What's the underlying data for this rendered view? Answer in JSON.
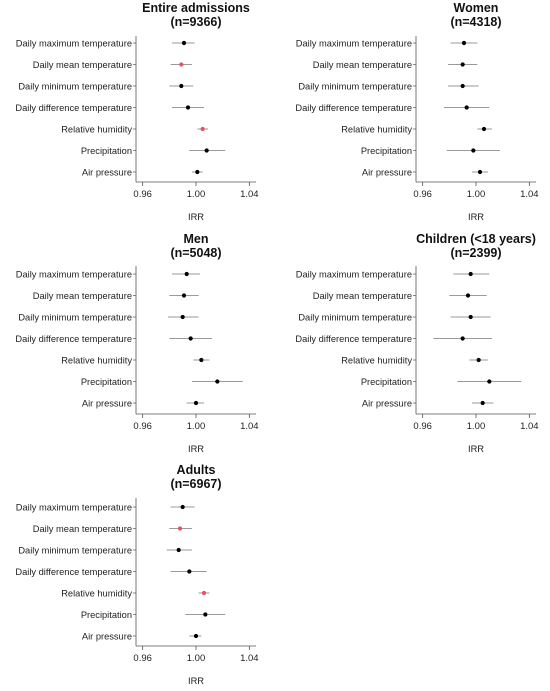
{
  "figure": {
    "colors": {
      "default_point": "#000000",
      "highlight_point": "#e8505b",
      "ci_line": "#9a9a9a",
      "axis": "#555555"
    }
  },
  "chart_data": [
    {
      "type": "forest",
      "title": "Entire admissions",
      "subtitle": "(n=9366)",
      "xlabel": "IRR",
      "xlim": [
        0.955,
        1.045
      ],
      "xticks": [
        "0.96",
        "1.00",
        "1.04"
      ],
      "xtick_values": [
        0.96,
        1.0,
        1.04
      ],
      "rows": [
        {
          "label": "Daily maximum temperature",
          "irr": 0.991,
          "lower": 0.982,
          "upper": 0.999,
          "highlight": false
        },
        {
          "label": "Daily mean temperature",
          "irr": 0.989,
          "lower": 0.981,
          "upper": 0.997,
          "highlight": true
        },
        {
          "label": "Daily minimum temperature",
          "irr": 0.989,
          "lower": 0.98,
          "upper": 0.998,
          "highlight": false
        },
        {
          "label": "Daily difference temperature",
          "irr": 0.994,
          "lower": 0.982,
          "upper": 1.006,
          "highlight": false
        },
        {
          "label": "Relative humidity",
          "irr": 1.005,
          "lower": 1.001,
          "upper": 1.009,
          "highlight": true
        },
        {
          "label": "Precipitation",
          "irr": 1.008,
          "lower": 0.995,
          "upper": 1.022,
          "highlight": false
        },
        {
          "label": "Air pressure",
          "irr": 1.001,
          "lower": 0.997,
          "upper": 1.005,
          "highlight": false
        }
      ]
    },
    {
      "type": "forest",
      "title": "Women",
      "subtitle": "(n=4318)",
      "xlabel": "IRR",
      "xlim": [
        0.955,
        1.045
      ],
      "xticks": [
        "0.96",
        "1.00",
        "1.04"
      ],
      "xtick_values": [
        0.96,
        1.0,
        1.04
      ],
      "rows": [
        {
          "label": "Daily maximum temperature",
          "irr": 0.991,
          "lower": 0.981,
          "upper": 1.001,
          "highlight": false
        },
        {
          "label": "Daily mean temperature",
          "irr": 0.99,
          "lower": 0.979,
          "upper": 1.001,
          "highlight": false
        },
        {
          "label": "Daily minimum temperature",
          "irr": 0.99,
          "lower": 0.979,
          "upper": 1.002,
          "highlight": false
        },
        {
          "label": "Daily difference temperature",
          "irr": 0.993,
          "lower": 0.976,
          "upper": 1.01,
          "highlight": false
        },
        {
          "label": "Relative humidity",
          "irr": 1.006,
          "lower": 1.001,
          "upper": 1.012,
          "highlight": false
        },
        {
          "label": "Precipitation",
          "irr": 0.998,
          "lower": 0.978,
          "upper": 1.018,
          "highlight": false
        },
        {
          "label": "Air pressure",
          "irr": 1.003,
          "lower": 0.997,
          "upper": 1.009,
          "highlight": false
        }
      ]
    },
    {
      "type": "forest",
      "title": "Men",
      "subtitle": "(n=5048)",
      "xlabel": "IRR",
      "xlim": [
        0.955,
        1.045
      ],
      "xticks": [
        "0.96",
        "1.00",
        "1.04"
      ],
      "xtick_values": [
        0.96,
        1.0,
        1.04
      ],
      "rows": [
        {
          "label": "Daily maximum temperature",
          "irr": 0.993,
          "lower": 0.982,
          "upper": 1.003,
          "highlight": false
        },
        {
          "label": "Daily mean temperature",
          "irr": 0.991,
          "lower": 0.98,
          "upper": 1.002,
          "highlight": false
        },
        {
          "label": "Daily minimum temperature",
          "irr": 0.99,
          "lower": 0.979,
          "upper": 1.002,
          "highlight": false
        },
        {
          "label": "Daily difference temperature",
          "irr": 0.996,
          "lower": 0.98,
          "upper": 1.012,
          "highlight": false
        },
        {
          "label": "Relative humidity",
          "irr": 1.004,
          "lower": 0.998,
          "upper": 1.01,
          "highlight": false
        },
        {
          "label": "Precipitation",
          "irr": 1.016,
          "lower": 0.997,
          "upper": 1.035,
          "highlight": false
        },
        {
          "label": "Air pressure",
          "irr": 1.0,
          "lower": 0.993,
          "upper": 1.006,
          "highlight": false
        }
      ]
    },
    {
      "type": "forest",
      "title": "Children (<18 years)",
      "subtitle": "(n=2399)",
      "xlabel": "IRR",
      "xlim": [
        0.955,
        1.045
      ],
      "xticks": [
        "0.96",
        "1.00",
        "1.04"
      ],
      "xtick_values": [
        0.96,
        1.0,
        1.04
      ],
      "rows": [
        {
          "label": "Daily maximum temperature",
          "irr": 0.996,
          "lower": 0.983,
          "upper": 1.01,
          "highlight": false
        },
        {
          "label": "Daily mean temperature",
          "irr": 0.994,
          "lower": 0.98,
          "upper": 1.008,
          "highlight": false
        },
        {
          "label": "Daily minimum temperature",
          "irr": 0.996,
          "lower": 0.981,
          "upper": 1.011,
          "highlight": false
        },
        {
          "label": "Daily difference temperature",
          "irr": 0.99,
          "lower": 0.968,
          "upper": 1.012,
          "highlight": false
        },
        {
          "label": "Relative humidity",
          "irr": 1.002,
          "lower": 0.995,
          "upper": 1.009,
          "highlight": false
        },
        {
          "label": "Precipitation",
          "irr": 1.01,
          "lower": 0.986,
          "upper": 1.034,
          "highlight": false
        },
        {
          "label": "Air pressure",
          "irr": 1.005,
          "lower": 0.997,
          "upper": 1.013,
          "highlight": false
        }
      ]
    },
    {
      "type": "forest",
      "title": "Adults",
      "subtitle": "(n=6967)",
      "xlabel": "IRR",
      "xlim": [
        0.955,
        1.045
      ],
      "xticks": [
        "0.96",
        "1.00",
        "1.04"
      ],
      "xtick_values": [
        0.96,
        1.0,
        1.04
      ],
      "rows": [
        {
          "label": "Daily maximum temperature",
          "irr": 0.99,
          "lower": 0.981,
          "upper": 0.999,
          "highlight": false
        },
        {
          "label": "Daily mean temperature",
          "irr": 0.988,
          "lower": 0.98,
          "upper": 0.997,
          "highlight": true
        },
        {
          "label": "Daily minimum temperature",
          "irr": 0.987,
          "lower": 0.978,
          "upper": 0.997,
          "highlight": false
        },
        {
          "label": "Daily difference temperature",
          "irr": 0.995,
          "lower": 0.981,
          "upper": 1.008,
          "highlight": false
        },
        {
          "label": "Relative humidity",
          "irr": 1.006,
          "lower": 1.002,
          "upper": 1.01,
          "highlight": true
        },
        {
          "label": "Precipitation",
          "irr": 1.007,
          "lower": 0.992,
          "upper": 1.022,
          "highlight": false
        },
        {
          "label": "Air pressure",
          "irr": 1.0,
          "lower": 0.995,
          "upper": 1.004,
          "highlight": false
        }
      ]
    }
  ]
}
